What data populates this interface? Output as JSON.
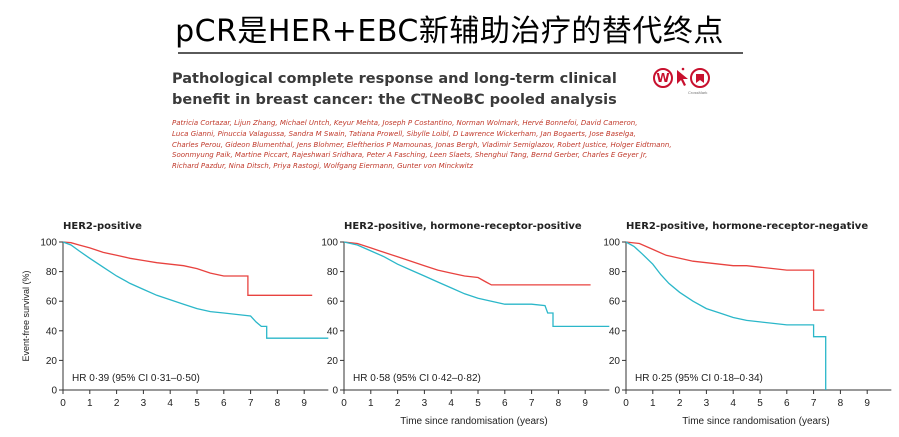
{
  "slide": {
    "title": "pCR是HER+EBC新辅助治疗的替代终点"
  },
  "paper": {
    "title_lines": [
      "Pathological complete response and long-term clinical",
      "benefit in breast cancer: the CTNeoBC pooled analysis"
    ],
    "author_lines": [
      "Patricia Cortazar, Lijun Zhang, Michael Untch, Keyur Mehta, Joseph P Costantino, Norman Wolmark, Hervé Bonnefoi, David Cameron,",
      "Luca Gianni, Pinuccia Valagussa, Sandra M Swain, Tatiana Prowell, Sibylle Loibl, D Lawrence Wickerham, Jan Bogaerts, Jose Baselga,",
      "Charles Perou, Gideon Blumenthal, Jens Blohmer, Eleftherios P Mamounas, Jonas Bergh, Vladimir Semiglazov, Robert Justice, Holger Eidtmann,",
      "Soonmyung Paik, Martine Piccart, Rajeshwari Sridhara, Peter A Fasching, Leen Slaets, Shenghui Tang, Bernd Gerber, Charles E Geyer Jr,",
      "Richard Pazdur, Nina Ditsch, Priya Rastogi, Wolfgang Eiermann, Gunter von Minckwitz"
    ],
    "logo_icons": [
      "lancet-w-icon",
      "cursor-icon",
      "crossmark-icon"
    ],
    "logo_letter": "W",
    "crossmark_label": "CrossMark"
  },
  "colors": {
    "pcr_line": "#e8423f",
    "no_pcr_line": "#2bb7c9",
    "axis": "#333333"
  },
  "chart_data": [
    {
      "type": "line",
      "title": "HER2-positive",
      "ylabel": "Event-free survival (%)",
      "xlabel": "",
      "xlim": [
        0,
        9.9
      ],
      "ylim": [
        0,
        100
      ],
      "xticks": [
        0,
        1,
        2,
        3,
        4,
        5,
        6,
        7,
        8,
        9
      ],
      "yticks": [
        0,
        20,
        40,
        60,
        80,
        100
      ],
      "annotation": "HR 0·39 (95% CI 0·31–0·50)",
      "series": [
        {
          "color": "#e8423f",
          "points": [
            [
              0,
              100
            ],
            [
              0.3,
              99.5
            ],
            [
              0.6,
              98
            ],
            [
              1,
              96
            ],
            [
              1.5,
              93
            ],
            [
              2,
              91
            ],
            [
              2.5,
              89
            ],
            [
              3,
              87.5
            ],
            [
              3.5,
              86
            ],
            [
              4,
              85
            ],
            [
              4.5,
              84
            ],
            [
              5,
              82
            ],
            [
              5.5,
              79
            ],
            [
              6,
              77
            ],
            [
              6.5,
              77
            ],
            [
              6.9,
              77
            ],
            [
              6.9,
              64
            ],
            [
              9.3,
              64
            ]
          ]
        },
        {
          "color": "#2bb7c9",
          "points": [
            [
              0,
              100
            ],
            [
              0.3,
              98
            ],
            [
              0.6,
              94
            ],
            [
              1,
              89
            ],
            [
              1.5,
              83
            ],
            [
              2,
              77
            ],
            [
              2.5,
              72
            ],
            [
              3,
              68
            ],
            [
              3.5,
              64
            ],
            [
              4,
              61
            ],
            [
              4.5,
              58
            ],
            [
              5,
              55
            ],
            [
              5.5,
              53
            ],
            [
              6,
              52
            ],
            [
              6.5,
              51
            ],
            [
              7,
              50
            ],
            [
              7.2,
              46
            ],
            [
              7.4,
              43
            ],
            [
              7.6,
              43
            ],
            [
              7.6,
              35
            ],
            [
              9.9,
              35
            ]
          ]
        }
      ]
    },
    {
      "type": "line",
      "title": "HER2-positive, hormone-receptor-positive",
      "ylabel": "",
      "xlabel": "Time since randomisation (years)",
      "xlim": [
        0,
        9.9
      ],
      "ylim": [
        0,
        100
      ],
      "xticks": [
        0,
        1,
        2,
        3,
        4,
        5,
        6,
        7,
        8,
        9
      ],
      "yticks": [
        0,
        20,
        40,
        60,
        80,
        100
      ],
      "annotation": "HR 0·58 (95% CI 0·42–0·82)",
      "series": [
        {
          "color": "#e8423f",
          "points": [
            [
              0,
              100
            ],
            [
              0.5,
              99
            ],
            [
              1,
              96
            ],
            [
              1.5,
              93
            ],
            [
              2,
              90
            ],
            [
              2.5,
              87
            ],
            [
              3,
              84
            ],
            [
              3.5,
              81
            ],
            [
              4,
              79
            ],
            [
              4.5,
              77
            ],
            [
              5,
              76
            ],
            [
              5.3,
              73
            ],
            [
              5.5,
              71
            ],
            [
              6,
              71
            ],
            [
              7,
              71
            ],
            [
              8,
              71
            ],
            [
              9.2,
              71
            ]
          ]
        },
        {
          "color": "#2bb7c9",
          "points": [
            [
              0,
              100
            ],
            [
              0.5,
              98
            ],
            [
              1,
              94
            ],
            [
              1.5,
              90
            ],
            [
              2,
              85
            ],
            [
              2.5,
              81
            ],
            [
              3,
              77
            ],
            [
              3.5,
              73
            ],
            [
              4,
              69
            ],
            [
              4.5,
              65
            ],
            [
              5,
              62
            ],
            [
              5.5,
              60
            ],
            [
              6,
              58
            ],
            [
              6.5,
              58
            ],
            [
              7,
              58
            ],
            [
              7.5,
              57
            ],
            [
              7.6,
              52
            ],
            [
              7.8,
              52
            ],
            [
              7.8,
              43
            ],
            [
              9.9,
              43
            ]
          ]
        }
      ]
    },
    {
      "type": "line",
      "title": "HER2-positive, hormone-receptor-negative",
      "ylabel": "",
      "xlabel": "Time since randomisation (years)",
      "xlim": [
        0,
        9.9
      ],
      "ylim": [
        0,
        100
      ],
      "xticks": [
        0,
        1,
        2,
        3,
        4,
        5,
        6,
        7,
        8,
        9
      ],
      "yticks": [
        0,
        20,
        40,
        60,
        80,
        100
      ],
      "annotation": "HR 0·25 (95% CI 0·18–0·34)",
      "series": [
        {
          "color": "#e8423f",
          "points": [
            [
              0,
              100
            ],
            [
              0.5,
              99
            ],
            [
              1,
              95
            ],
            [
              1.5,
              91
            ],
            [
              2,
              89
            ],
            [
              2.5,
              87
            ],
            [
              3,
              86
            ],
            [
              3.5,
              85
            ],
            [
              4,
              84
            ],
            [
              4.5,
              84
            ],
            [
              5,
              83
            ],
            [
              5.5,
              82
            ],
            [
              6,
              81
            ],
            [
              6.5,
              81
            ],
            [
              7,
              81
            ],
            [
              7,
              54
            ],
            [
              7.4,
              54
            ]
          ]
        },
        {
          "color": "#2bb7c9",
          "points": [
            [
              0,
              100
            ],
            [
              0.3,
              97
            ],
            [
              0.6,
              92
            ],
            [
              1,
              85
            ],
            [
              1.3,
              78
            ],
            [
              1.6,
              72
            ],
            [
              2,
              66
            ],
            [
              2.5,
              60
            ],
            [
              3,
              55
            ],
            [
              3.5,
              52
            ],
            [
              4,
              49
            ],
            [
              4.5,
              47
            ],
            [
              5,
              46
            ],
            [
              5.5,
              45
            ],
            [
              6,
              44
            ],
            [
              6.5,
              44
            ],
            [
              7,
              44
            ],
            [
              7,
              36
            ],
            [
              7.45,
              36
            ],
            [
              7.45,
              0
            ]
          ]
        }
      ]
    }
  ]
}
